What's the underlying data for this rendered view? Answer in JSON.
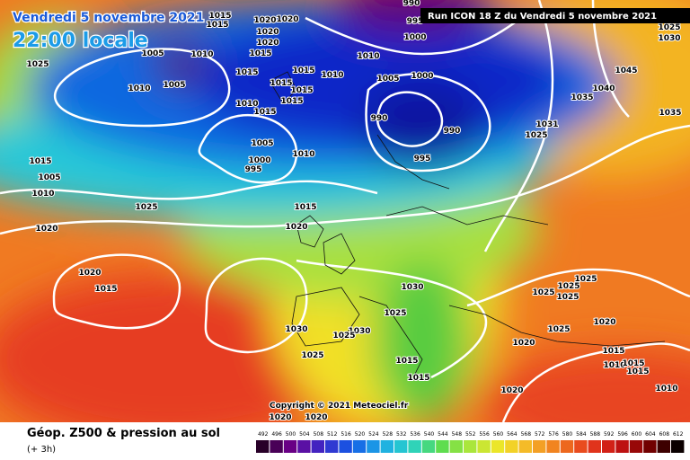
{
  "header": {
    "date": "Vendredi 5 novembre 2021",
    "time": "22:00 locale",
    "run": "Run ICON 18 Z du Vendredi 5 novembre 2021"
  },
  "copyright": "Copyright © 2021 Meteociel.fr",
  "footer": {
    "title": "Géop. Z500 & pression au sol",
    "subtitle": "(+ 3h)"
  },
  "scale": {
    "labels": [
      492,
      496,
      500,
      504,
      508,
      512,
      516,
      520,
      524,
      528,
      532,
      536,
      540,
      544,
      548,
      552,
      556,
      560,
      564,
      568,
      572,
      576,
      580,
      584,
      588,
      592,
      596,
      600,
      604,
      608,
      612
    ]
  },
  "isobars": [
    "990",
    "995",
    "1000",
    "1015",
    "1015",
    "1020",
    "1020",
    "1020",
    "1020",
    "1015",
    "1010",
    "1005",
    "1005",
    "1010",
    "1025",
    "1015",
    "1015",
    "1015",
    "1015",
    "1010",
    "1010",
    "1005",
    "1000",
    "1010",
    "1015",
    "1015",
    "990",
    "990",
    "995",
    "1005",
    "1000",
    "995",
    "1010",
    "1015",
    "1005",
    "1010",
    "1025",
    "1020",
    "1015",
    "1020",
    "1020",
    "1015",
    "1030",
    "1025",
    "1030",
    "1030",
    "1025",
    "1025",
    "1015",
    "1015",
    "1020",
    "1020",
    "1025",
    "1025",
    "1025",
    "1025",
    "1025",
    "1020",
    "1015",
    "1010",
    "1015",
    "1015",
    "1010",
    "1045",
    "1040",
    "1035",
    "1035",
    "1031",
    "1025",
    "1025",
    "1030",
    "1020",
    "1020"
  ]
}
